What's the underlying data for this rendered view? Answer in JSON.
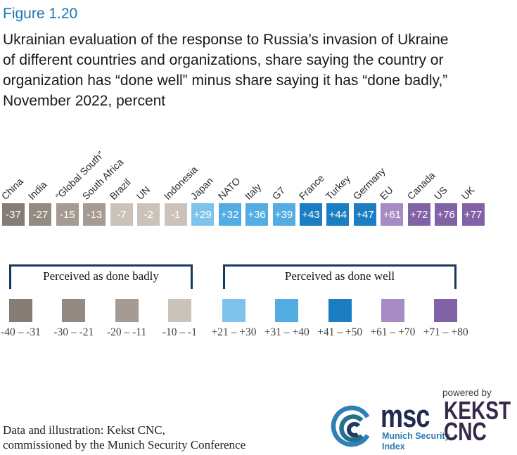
{
  "figure": {
    "label": "Figure 1.20",
    "title_lines": [
      "Ukrainian evaluation of the response to Russia’s invasion of Ukraine",
      "of different countries and organizations, share saying the country or",
      "organization has “done well” minus share saying it has “done badly,”",
      "November 2022, percent"
    ]
  },
  "chart_data": {
    "type": "bar",
    "variant": "single-row color-coded score squares with rotated category labels",
    "title": "Ukrainian evaluation of the response to Russia’s invasion of Ukraine of different countries and organizations, share saying the country or organization has “done well” minus share saying it has “done badly,” November 2022, percent",
    "unit": "percent",
    "xlabel": "",
    "ylabel": "",
    "categories": [
      "China",
      "India",
      "“Global South”",
      "South Africa",
      "Brazil",
      "UN",
      "Indonesia",
      "Japan",
      "NATO",
      "Italy",
      "G7",
      "France",
      "Turkey",
      "Germany",
      "EU",
      "Canada",
      "US",
      "UK"
    ],
    "values": [
      -37,
      -27,
      -15,
      -13,
      -7,
      -2,
      -1,
      29,
      32,
      36,
      39,
      43,
      44,
      47,
      61,
      72,
      76,
      77
    ],
    "value_labels": [
      "-37",
      "-27",
      "-15",
      "-13",
      "-7",
      "-2",
      "-1",
      "+29",
      "+32",
      "+36",
      "+39",
      "+43",
      "+44",
      "+47",
      "+61",
      "+72",
      "+76",
      "+77"
    ],
    "colors": [
      "#847c75",
      "#938a82",
      "#a59b92",
      "#a59b92",
      "#cbc3ba",
      "#cbc3ba",
      "#cbc3ba",
      "#7fc2eb",
      "#54ade2",
      "#54ade2",
      "#54ade2",
      "#1b7ec2",
      "#1b7ec2",
      "#1b7ec2",
      "#a78cc3",
      "#8162a6",
      "#8162a6",
      "#8162a6"
    ]
  },
  "legend": {
    "badly": {
      "label": "Perceived as done badly",
      "items": [
        {
          "range": "-40 – -31",
          "color": "#847c75"
        },
        {
          "range": "-30 – -21",
          "color": "#938a82"
        },
        {
          "range": "-20 – -11",
          "color": "#a59b92"
        },
        {
          "range": "-10 – -1",
          "color": "#cbc3ba"
        }
      ]
    },
    "well": {
      "label": "Perceived as done well",
      "items": [
        {
          "range": "+21 – +30",
          "color": "#7fc2eb"
        },
        {
          "range": "+31 – +40",
          "color": "#54ade2"
        },
        {
          "range": "+41 – +50",
          "color": "#1b7ec2"
        },
        {
          "range": "+61 – +70",
          "color": "#a78cc3"
        },
        {
          "range": "+71 – +80",
          "color": "#8162a6"
        }
      ]
    }
  },
  "footer": {
    "lines": [
      "Data and illustration: Kekst CNC,",
      "commissioned by the Munich Security Conference"
    ],
    "msc_logo": {
      "wordmark": "msc",
      "tagline_line1": "Munich Security",
      "tagline_line2": "Index"
    },
    "kekst_logo": {
      "powered_by": "powered by",
      "line1": "KEKST",
      "line2": "CNC"
    }
  },
  "colors": {
    "figure_label_blue": "#1878b4",
    "bracket_navy": "#17395c",
    "msc_navy": "#202c4e",
    "msc_blue": "#2c7cb4",
    "kekst_dark": "#37294a",
    "value_text": "#ffffff"
  }
}
